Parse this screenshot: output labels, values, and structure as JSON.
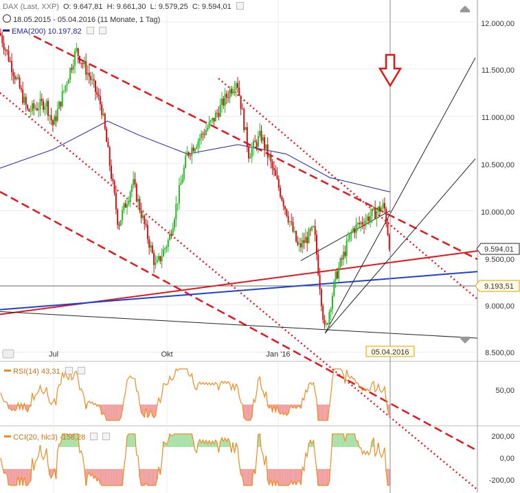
{
  "header": {
    "instrument": "DAX (Last, XXP)",
    "open": "O: 9.647,81",
    "high": "H: 9.661,30",
    "low": "L: 9.579,25",
    "close": "C: 9.594,01",
    "range": "18.05.2015 - 05.04.2016 (11 Monate, 1 Tag)",
    "ema_label": "EMA(200)",
    "ema_value": "10.197,82"
  },
  "rsi_panel": {
    "label": "RSI(14)",
    "value": "43,31"
  },
  "cci_panel": {
    "label": "CCI(20, hlc3)",
    "value": "-158,28"
  },
  "colors": {
    "up": "#22bb22",
    "down": "#cc1111",
    "ema": "#1c1ca8",
    "channel": "#e8141a",
    "support": "#1a3fdc",
    "oscillator": "#f08a1e"
  },
  "chart_data": [
    {
      "type": "candlestick",
      "x_tick_labels": [
        "Jul",
        "Okt",
        "Jan '16"
      ],
      "y_tick_labels": [
        "12.000,00",
        "11.500,00",
        "11.000,00",
        "10.500,00",
        "10.000,00",
        "9.500,00",
        "9.000,00",
        "8.500,00"
      ],
      "ylim": [
        8450,
        12250
      ],
      "price_tags": [
        "9.594,01",
        "9.193,51"
      ],
      "date_tag": "05.04.2016",
      "waypoints": [
        [
          "2015-05-18",
          11880
        ],
        [
          "2015-06-10",
          11050
        ],
        [
          "2015-06-25",
          11150
        ],
        [
          "2015-07-01",
          10900
        ],
        [
          "2015-07-20",
          11700
        ],
        [
          "2015-08-01",
          11400
        ],
        [
          "2015-08-10",
          11100
        ],
        [
          "2015-08-24",
          9850
        ],
        [
          "2015-09-05",
          10300
        ],
        [
          "2015-09-24",
          9400
        ],
        [
          "2015-10-05",
          9700
        ],
        [
          "2015-10-20",
          10600
        ],
        [
          "2015-11-10",
          10950
        ],
        [
          "2015-11-30",
          11400
        ],
        [
          "2015-12-10",
          10600
        ],
        [
          "2015-12-20",
          10800
        ],
        [
          "2016-01-05",
          10200
        ],
        [
          "2016-01-20",
          9600
        ],
        [
          "2016-02-02",
          9800
        ],
        [
          "2016-02-11",
          8700
        ],
        [
          "2016-02-20",
          9300
        ],
        [
          "2016-03-05",
          9800
        ],
        [
          "2016-03-20",
          9950
        ],
        [
          "2016-03-31",
          10050
        ],
        [
          "2016-04-05",
          9594
        ]
      ],
      "ema_200": [
        [
          "2015-05-18",
          10450
        ],
        [
          "2015-07-01",
          10650
        ],
        [
          "2015-08-15",
          10950
        ],
        [
          "2015-09-10",
          10800
        ],
        [
          "2015-10-20",
          10600
        ],
        [
          "2015-12-01",
          10700
        ],
        [
          "2016-01-10",
          10600
        ],
        [
          "2016-02-15",
          10350
        ],
        [
          "2016-04-05",
          10197.82
        ]
      ],
      "trendlines": [
        {
          "style": "dashed",
          "color": "red",
          "from": [
            "2015-06-15",
            11850
          ],
          "to": [
            "2016-04-05",
            9950
          ]
        },
        {
          "style": "dashed",
          "color": "red",
          "from": [
            "2015-05-18",
            10200
          ],
          "to": [
            "2016-01-25",
            8450
          ]
        },
        {
          "style": "dotted",
          "color": "red",
          "from": [
            "2015-11-15",
            11400
          ],
          "to": [
            "2016-04-05",
            9850
          ]
        },
        {
          "style": "dotted",
          "color": "red",
          "from": [
            "2015-05-18",
            11250
          ],
          "to": [
            "2016-02-05",
            8450
          ]
        },
        {
          "style": "solid",
          "color": "red",
          "from": [
            "2015-05-18",
            8900
          ],
          "to": [
            "2016-04-05",
            9450
          ]
        },
        {
          "style": "solid",
          "color": "blue",
          "from": [
            "2015-05-18",
            8950
          ],
          "to": [
            "2016-04-05",
            9280
          ]
        },
        {
          "style": "solid",
          "color": "black",
          "from": [
            "2015-05-18",
            8930
          ],
          "to": [
            "2016-04-05",
            8700
          ]
        }
      ]
    },
    {
      "type": "line",
      "name": "RSI(14)",
      "y_tick_labels": [
        "50,00"
      ],
      "last": 43.31
    },
    {
      "type": "line",
      "name": "CCI(20, hlc3)",
      "y_tick_labels": [
        "200,00",
        "0,00",
        "-200,00"
      ],
      "last": -158.28
    }
  ]
}
